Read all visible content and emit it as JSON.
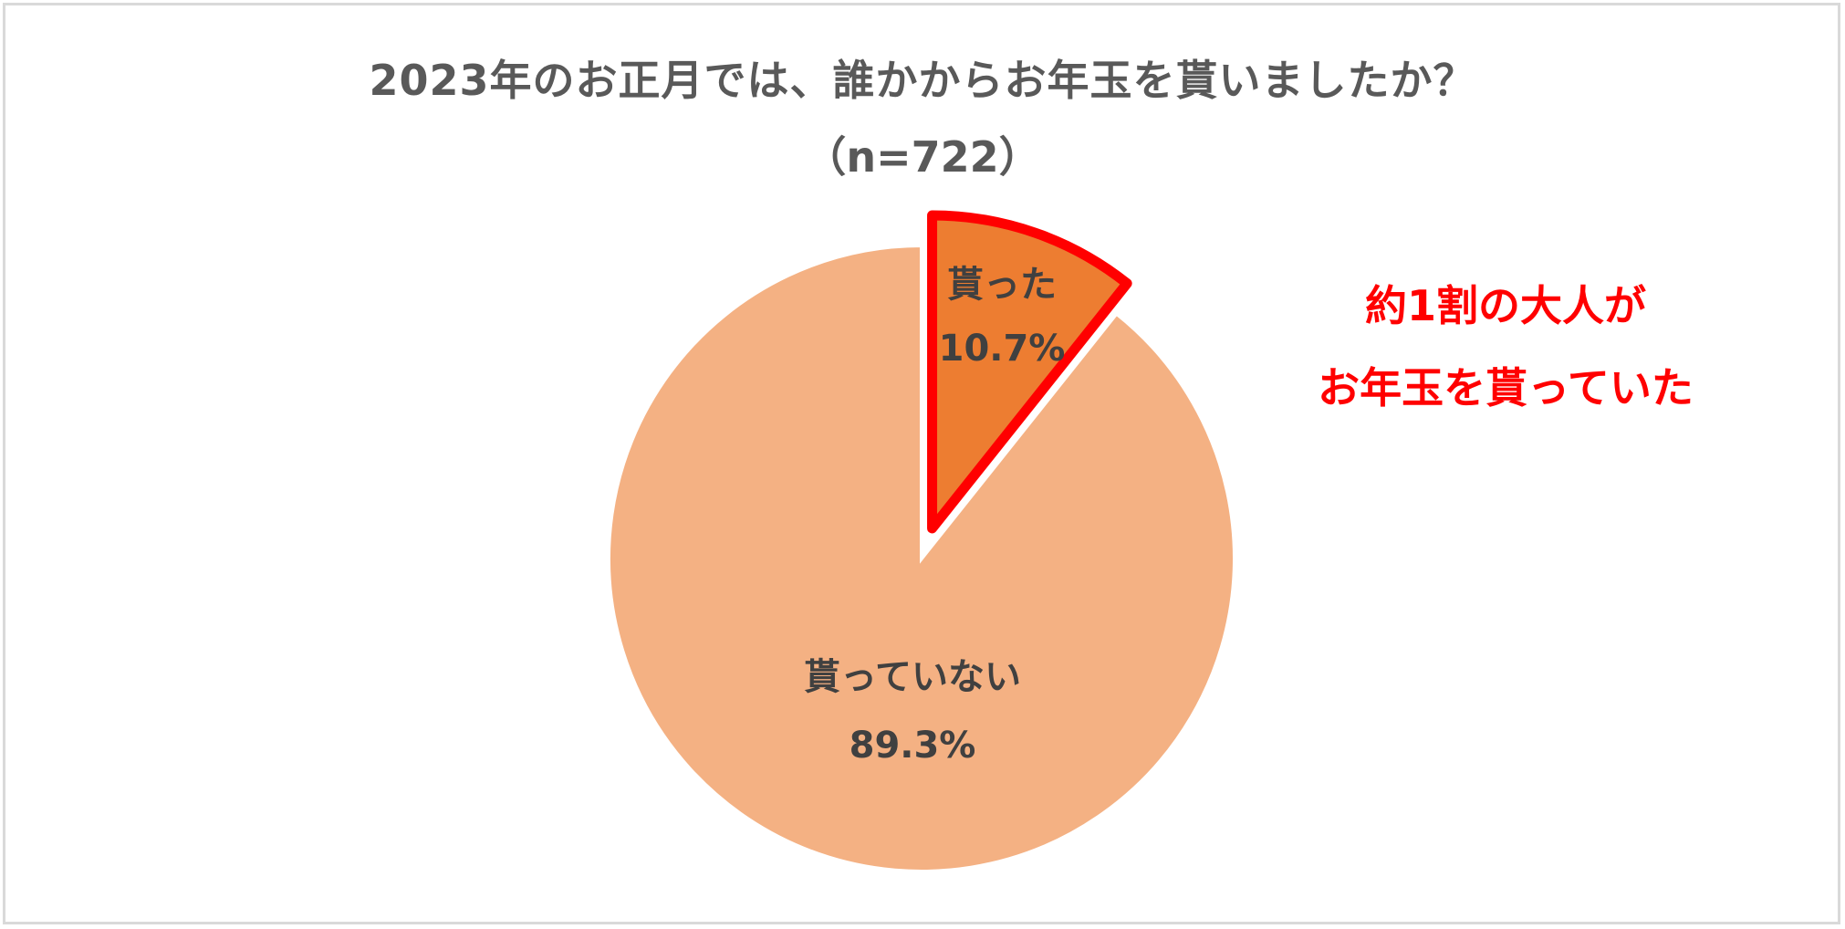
{
  "chart_data": {
    "type": "pie",
    "title": "2023年のお正月では、誰かからお年玉を貰いましたか？",
    "subtitle": "（n=722）",
    "slices": [
      {
        "label": "貰った",
        "value": 10.7,
        "value_label": "10.7%",
        "color": "#ED7D31",
        "highlight": true,
        "highlight_color": "#FF0000"
      },
      {
        "label": "貰っていない",
        "value": 89.3,
        "value_label": "89.3%",
        "color": "#F4B183",
        "highlight": false
      }
    ],
    "annotation": [
      "約1割の大人が",
      "お年玉を貰っていた"
    ],
    "annotation_color": "#FF0000"
  }
}
